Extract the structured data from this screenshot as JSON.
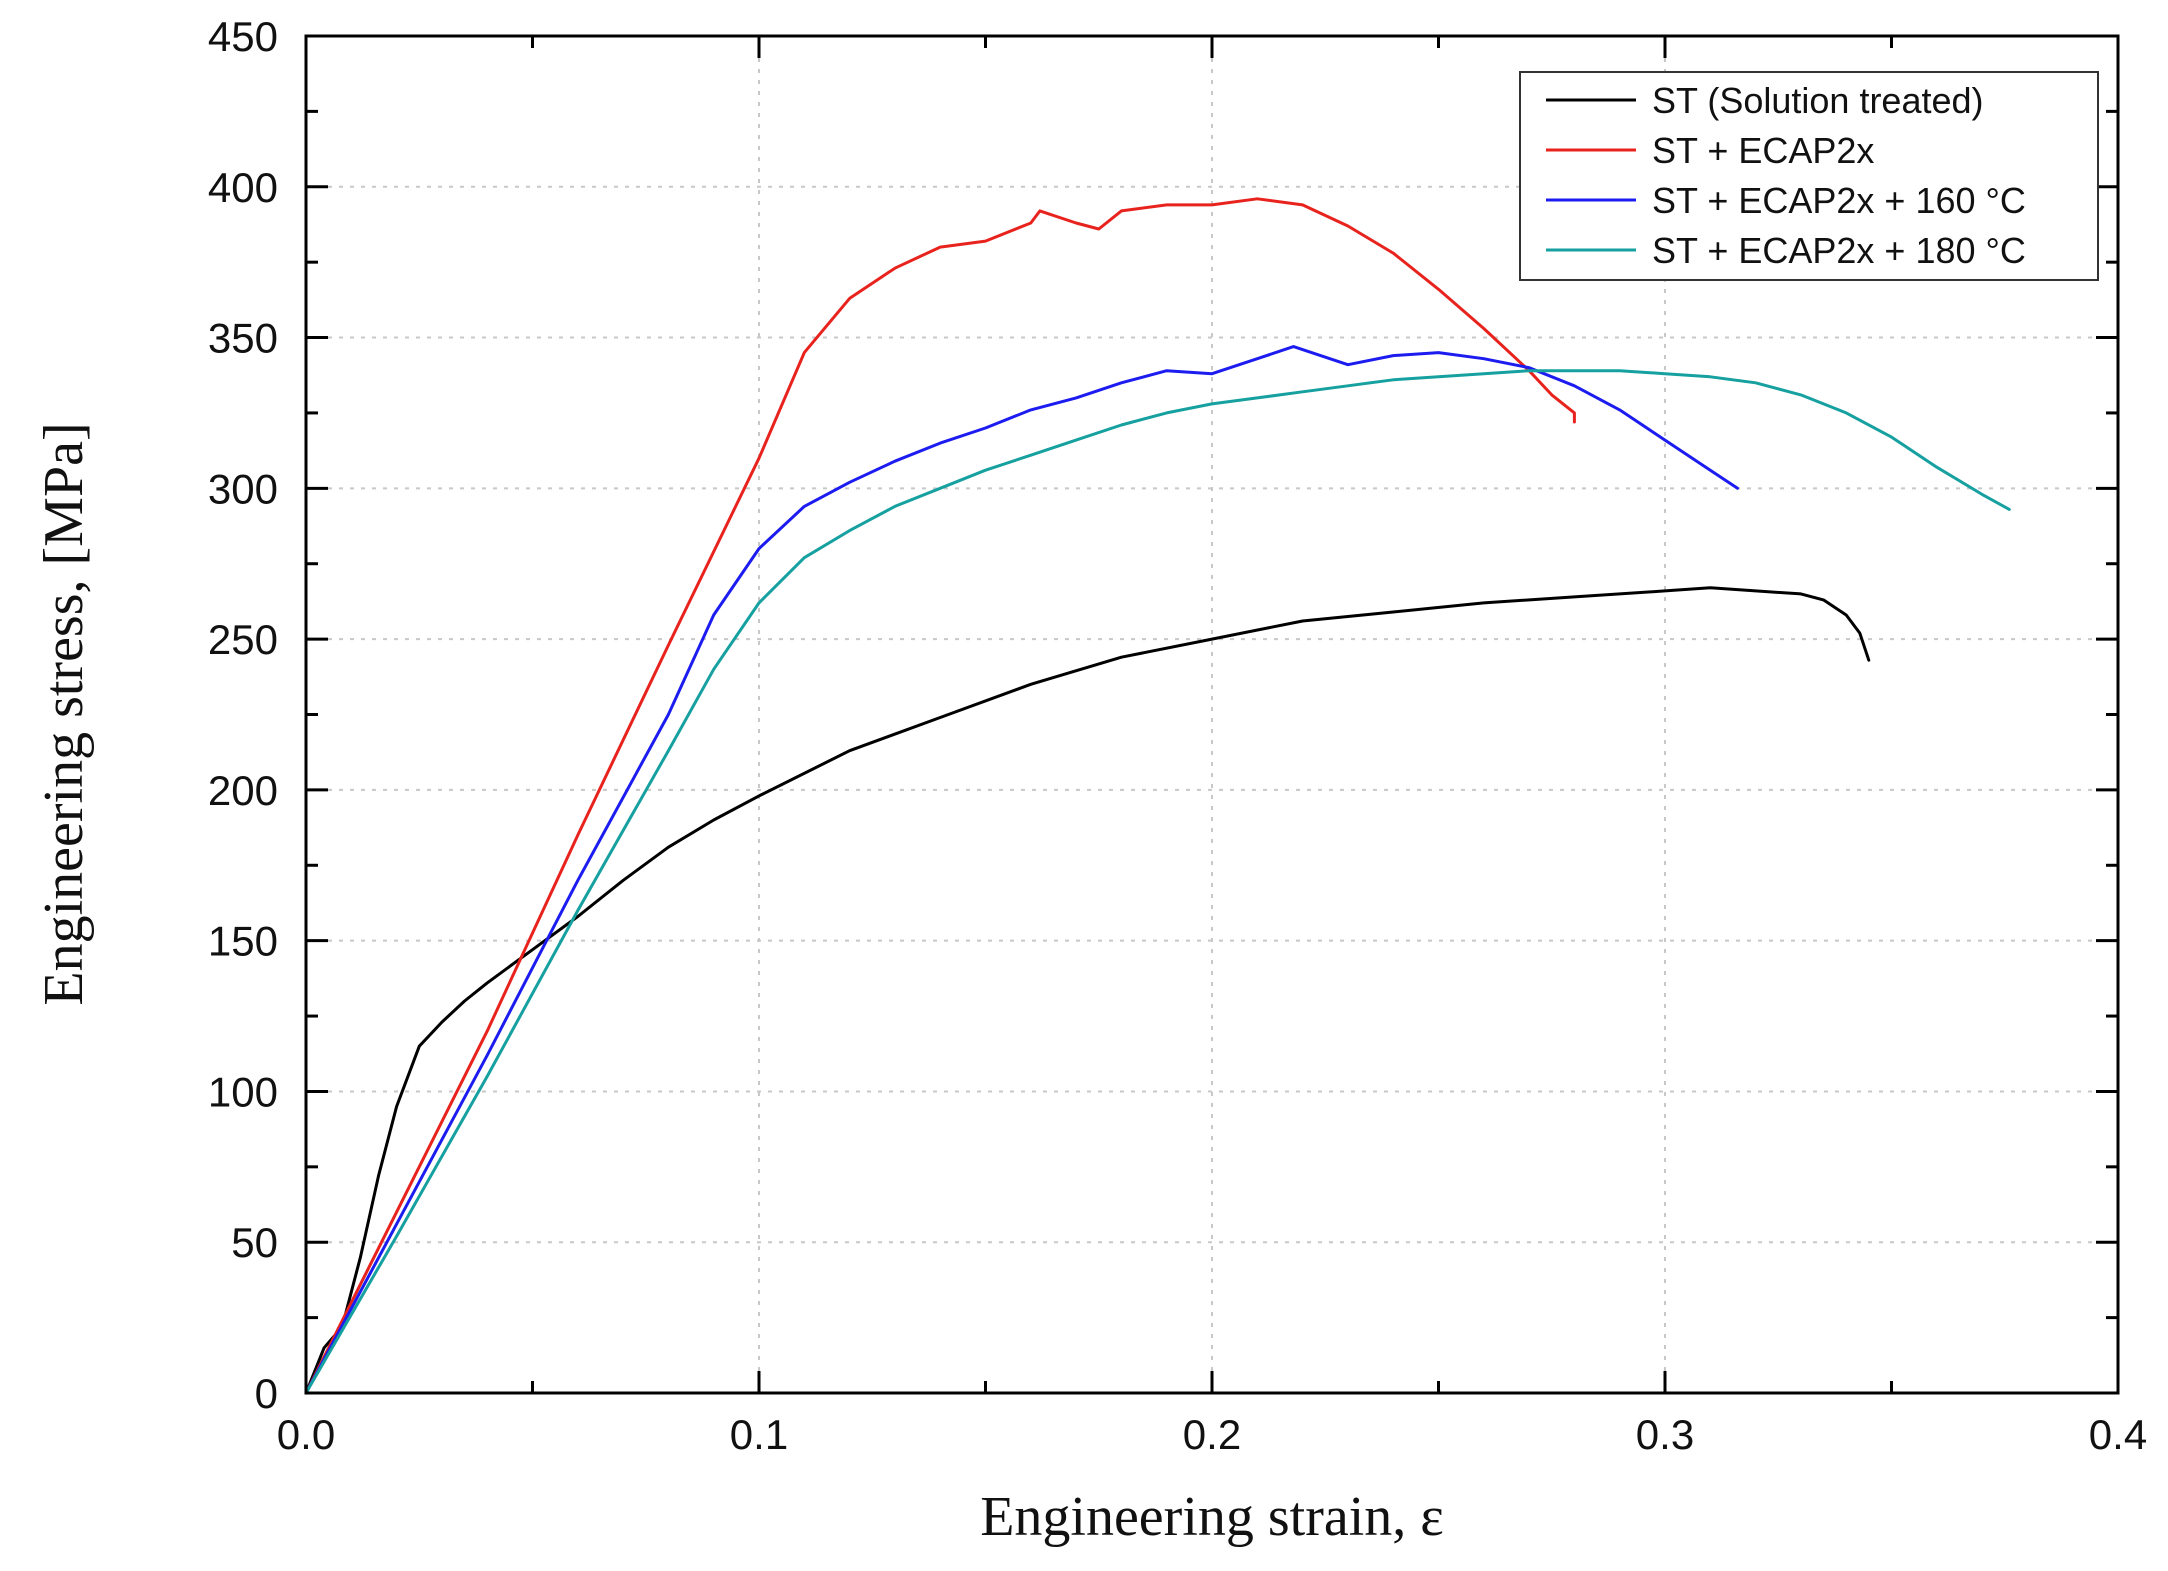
{
  "chart_data": {
    "type": "line",
    "title": "",
    "xlabel": "Engineering strain, ε",
    "ylabel": "Engineering stress, [MPa]",
    "xlim": [
      0.0,
      0.4
    ],
    "ylim": [
      0,
      450
    ],
    "x_ticks": [
      0.0,
      0.1,
      0.2,
      0.3,
      0.4
    ],
    "x_tick_labels": [
      "0.0",
      "0.1",
      "0.2",
      "0.3",
      "0.4"
    ],
    "y_ticks": [
      0,
      50,
      100,
      150,
      200,
      250,
      300,
      350,
      400,
      450
    ],
    "y_tick_labels": [
      "0",
      "50",
      "100",
      "150",
      "200",
      "250",
      "300",
      "350",
      "400",
      "450"
    ],
    "grid": true,
    "legend_position": "top-right",
    "series": [
      {
        "name": "ST (Solution treated)",
        "color": "#000000",
        "x": [
          0,
          0.004,
          0.008,
          0.012,
          0.016,
          0.02,
          0.025,
          0.03,
          0.035,
          0.04,
          0.05,
          0.06,
          0.07,
          0.08,
          0.09,
          0.1,
          0.12,
          0.14,
          0.16,
          0.18,
          0.2,
          0.22,
          0.24,
          0.26,
          0.28,
          0.3,
          0.31,
          0.32,
          0.33,
          0.335,
          0.34,
          0.343,
          0.345
        ],
        "y": [
          0,
          15,
          22,
          45,
          72,
          95,
          115,
          123,
          130,
          136,
          147,
          158,
          170,
          181,
          190,
          198,
          213,
          224,
          235,
          244,
          250,
          256,
          259,
          262,
          264,
          266,
          267,
          266,
          265,
          263,
          258,
          252,
          243
        ]
      },
      {
        "name": "ST + ECAP2x",
        "color": "#e8231e",
        "x": [
          0,
          0.02,
          0.04,
          0.06,
          0.08,
          0.1,
          0.11,
          0.12,
          0.13,
          0.14,
          0.15,
          0.16,
          0.162,
          0.17,
          0.175,
          0.18,
          0.19,
          0.2,
          0.21,
          0.22,
          0.23,
          0.24,
          0.25,
          0.26,
          0.27,
          0.275,
          0.28,
          0.28
        ],
        "y": [
          0,
          60,
          120,
          185,
          248,
          310,
          345,
          363,
          373,
          380,
          382,
          388,
          392,
          388,
          386,
          392,
          394,
          394,
          396,
          394,
          387,
          378,
          366,
          353,
          339,
          331,
          325,
          322
        ]
      },
      {
        "name": "ST + ECAP2x + 160 °C",
        "color": "#1c1cf0",
        "x": [
          0,
          0.02,
          0.04,
          0.06,
          0.08,
          0.09,
          0.1,
          0.11,
          0.12,
          0.13,
          0.14,
          0.15,
          0.16,
          0.17,
          0.18,
          0.19,
          0.2,
          0.21,
          0.218,
          0.23,
          0.24,
          0.25,
          0.26,
          0.27,
          0.28,
          0.29,
          0.3,
          0.31,
          0.316
        ],
        "y": [
          0,
          56,
          112,
          170,
          225,
          258,
          280,
          294,
          302,
          309,
          315,
          320,
          326,
          330,
          335,
          339,
          338,
          343,
          347,
          341,
          344,
          345,
          343,
          340,
          334,
          326,
          316,
          306,
          300
        ]
      },
      {
        "name": "ST + ECAP2x + 180 °C",
        "color": "#16a0a0",
        "x": [
          0,
          0.02,
          0.04,
          0.06,
          0.08,
          0.09,
          0.1,
          0.11,
          0.12,
          0.13,
          0.14,
          0.15,
          0.16,
          0.17,
          0.18,
          0.19,
          0.2,
          0.21,
          0.22,
          0.23,
          0.24,
          0.25,
          0.26,
          0.27,
          0.28,
          0.29,
          0.3,
          0.31,
          0.32,
          0.33,
          0.34,
          0.35,
          0.36,
          0.37,
          0.376
        ],
        "y": [
          0,
          52,
          105,
          160,
          213,
          240,
          262,
          277,
          286,
          294,
          300,
          306,
          311,
          316,
          321,
          325,
          328,
          330,
          332,
          334,
          336,
          337,
          338,
          339,
          339,
          339,
          338,
          337,
          335,
          331,
          325,
          317,
          307,
          298,
          293
        ]
      }
    ]
  }
}
